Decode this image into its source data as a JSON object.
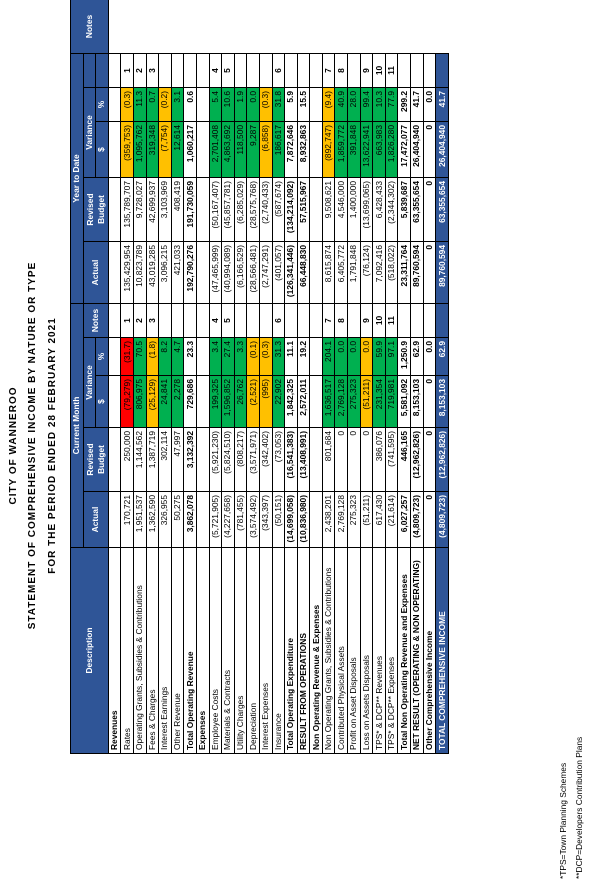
{
  "titles": {
    "org": "CITY OF WANNEROO",
    "statement": "STATEMENT OF COMPREHENSIVE INCOME BY NATURE OR TYPE",
    "period": "FOR THE PERIOD ENDED 28 FEBRUARY 2021"
  },
  "headers": {
    "description": "Description",
    "current_month": "Current Month",
    "year_to_date": "Year to Date",
    "actual": "Actual",
    "revised_budget": "Revised Budget",
    "variance": "Variance",
    "notes": "Notes",
    "dollar": "$",
    "percent": "%"
  },
  "colors": {
    "header_fill": "#2f5597",
    "favourable": "#00b050",
    "caution": "#ffc000",
    "unfavourable": "#ff0000"
  },
  "rows": [
    {
      "label": "Revenues",
      "kind": "sec",
      "cm": [
        "",
        "",
        "",
        "",
        ""
      ],
      "ytd": [
        "",
        "",
        "",
        "",
        ""
      ],
      "cmc": [
        "",
        "",
        "",
        "",
        ""
      ],
      "ytdc": [
        "",
        "",
        "",
        "",
        ""
      ]
    },
    {
      "label": "Rates",
      "kind": "item",
      "cm": [
        "170,721",
        "250,000",
        "(79,279)",
        "(31.7)",
        "1"
      ],
      "ytd": [
        "135,429,954",
        "135,789,707",
        "(359,753)",
        "(0.3)",
        "1"
      ],
      "cmc": [
        "",
        "",
        "red",
        "red",
        ""
      ],
      "ytdc": [
        "",
        "",
        "yellow",
        "yellow",
        ""
      ]
    },
    {
      "label": "Operating Grants, Subsidies & Contributions",
      "kind": "item",
      "cm": [
        "1,951,537",
        "1,144,562",
        "806,975",
        "70.5",
        "2"
      ],
      "ytd": [
        "10,823,789",
        "9,728,027",
        "1,095,762",
        "11.3",
        "2"
      ],
      "cmc": [
        "",
        "",
        "green",
        "green",
        ""
      ],
      "ytdc": [
        "",
        "",
        "green",
        "green",
        ""
      ]
    },
    {
      "label": "Fees & Charges",
      "kind": "item",
      "cm": [
        "1,362,590",
        "1,387,719",
        "(25,129)",
        "(1.8)",
        "3"
      ],
      "ytd": [
        "43,019,285",
        "42,699,937",
        "319,348",
        "0.7",
        "3"
      ],
      "cmc": [
        "",
        "",
        "yellow",
        "yellow",
        ""
      ],
      "ytdc": [
        "",
        "",
        "green",
        "green",
        ""
      ]
    },
    {
      "label": "Interest Earnings",
      "kind": "item",
      "cm": [
        "326,955",
        "302,114",
        "24,841",
        "8.2",
        ""
      ],
      "ytd": [
        "3,096,215",
        "3,103,969",
        "(7,754)",
        "(0.2)",
        ""
      ],
      "cmc": [
        "",
        "",
        "green",
        "green",
        ""
      ],
      "ytdc": [
        "",
        "",
        "yellow",
        "yellow",
        ""
      ]
    },
    {
      "label": "Other Revenue",
      "kind": "item",
      "cm": [
        "50,275",
        "47,997",
        "2,278",
        "4.7",
        ""
      ],
      "ytd": [
        "421,033",
        "408,419",
        "12,614",
        "3.1",
        ""
      ],
      "cmc": [
        "",
        "",
        "green",
        "green",
        ""
      ],
      "ytdc": [
        "",
        "",
        "green",
        "green",
        ""
      ]
    },
    {
      "label": "Total Operating Revenue",
      "kind": "tot",
      "cm": [
        "3,862,078",
        "3,132,392",
        "729,686",
        "23.3",
        ""
      ],
      "ytd": [
        "192,790,276",
        "191,730,059",
        "1,060,217",
        "0.6",
        ""
      ],
      "cmc": [
        "",
        "",
        "",
        "",
        ""
      ],
      "ytdc": [
        "",
        "",
        "",
        "",
        ""
      ]
    },
    {
      "label": "Expenses",
      "kind": "sec",
      "cm": [
        "",
        "",
        "",
        "",
        ""
      ],
      "ytd": [
        "",
        "",
        "",
        "",
        ""
      ],
      "cmc": [
        "",
        "",
        "",
        "",
        ""
      ],
      "ytdc": [
        "",
        "",
        "",
        "",
        ""
      ]
    },
    {
      "label": "Employee Costs",
      "kind": "item",
      "cm": [
        "(5,721,905)",
        "(5,921,230)",
        "199,325",
        "3.4",
        "4"
      ],
      "ytd": [
        "(47,465,999)",
        "(50,167,407)",
        "2,701,408",
        "5.4",
        "4"
      ],
      "cmc": [
        "",
        "",
        "green",
        "green",
        ""
      ],
      "ytdc": [
        "",
        "",
        "green",
        "green",
        ""
      ]
    },
    {
      "label": "Materials & Contracts",
      "kind": "item",
      "cm": [
        "(4,227,658)",
        "(5,824,510)",
        "1,596,852",
        "27.4",
        "5"
      ],
      "ytd": [
        "(40,994,089)",
        "(45,857,781)",
        "4,863,692",
        "10.6",
        "5"
      ],
      "cmc": [
        "",
        "",
        "green",
        "green",
        ""
      ],
      "ytdc": [
        "",
        "",
        "green",
        "green",
        ""
      ]
    },
    {
      "label": "Utility Charges",
      "kind": "item",
      "cm": [
        "(781,455)",
        "(808,217)",
        "26,762",
        "3.3",
        ""
      ],
      "ytd": [
        "(6,166,529)",
        "(6,285,029)",
        "118,500",
        "1.9",
        ""
      ],
      "cmc": [
        "",
        "",
        "green",
        "green",
        ""
      ],
      "ytdc": [
        "",
        "",
        "green",
        "green",
        ""
      ]
    },
    {
      "label": "Depreciation",
      "kind": "item",
      "cm": [
        "(3,574,492)",
        "(3,571,971)",
        "(2,521)",
        "(0.1)",
        ""
      ],
      "ytd": [
        "(28,566,481)",
        "(28,575,768)",
        "9,287",
        "0.0",
        ""
      ],
      "cmc": [
        "",
        "",
        "yellow",
        "yellow",
        ""
      ],
      "ytdc": [
        "",
        "",
        "green",
        "green",
        ""
      ]
    },
    {
      "label": "Interest Expenses",
      "kind": "item",
      "cm": [
        "(343,397)",
        "(342,402)",
        "(995)",
        "(0.3)",
        ""
      ],
      "ytd": [
        "(2,747,291)",
        "(2,740,433)",
        "(6,858)",
        "(0.3)",
        ""
      ],
      "cmc": [
        "",
        "",
        "yellow",
        "yellow",
        ""
      ],
      "ytdc": [
        "",
        "",
        "yellow",
        "yellow",
        ""
      ]
    },
    {
      "label": "Insurance",
      "kind": "item",
      "cm": [
        "(50,151)",
        "(73,053)",
        "22,902",
        "31.3",
        "6"
      ],
      "ytd": [
        "(401,057)",
        "(587,674)",
        "186,617",
        "31.8",
        "6"
      ],
      "cmc": [
        "",
        "",
        "green",
        "green",
        ""
      ],
      "ytdc": [
        "",
        "",
        "green",
        "green",
        ""
      ]
    },
    {
      "label": "Total Operating Expenditure",
      "kind": "tot",
      "cm": [
        "(14,699,058)",
        "(16,541,383)",
        "1,842,325",
        "11.1",
        ""
      ],
      "ytd": [
        "(126,341,446)",
        "(134,214,092)",
        "7,872,646",
        "5.9",
        ""
      ],
      "cmc": [
        "",
        "",
        "",
        "",
        ""
      ],
      "ytdc": [
        "",
        "",
        "",
        "",
        ""
      ]
    },
    {
      "label": "RESULT FROM OPERATIONS",
      "kind": "tot",
      "cm": [
        "(10,836,980)",
        "(13,408,991)",
        "2,572,011",
        "19.2",
        ""
      ],
      "ytd": [
        "66,448,830",
        "57,515,967",
        "8,932,863",
        "15.5",
        ""
      ],
      "cmc": [
        "",
        "",
        "",
        "",
        ""
      ],
      "ytdc": [
        "",
        "",
        "",
        "",
        ""
      ]
    },
    {
      "label": "Non Operating Revenue & Expenses",
      "kind": "sec",
      "cm": [
        "",
        "",
        "",
        "",
        ""
      ],
      "ytd": [
        "",
        "",
        "",
        "",
        ""
      ],
      "cmc": [
        "",
        "",
        "",
        "",
        ""
      ],
      "ytdc": [
        "",
        "",
        "",
        "",
        ""
      ]
    },
    {
      "label": "Non Operating Grants, Subsidies & Contributions",
      "kind": "item",
      "cm": [
        "2,438,201",
        "801,684",
        "1,636,517",
        "204.1",
        "7"
      ],
      "ytd": [
        "8,615,874",
        "9,508,621",
        "(892,747)",
        "(9.4)",
        "7"
      ],
      "cmc": [
        "",
        "",
        "green",
        "green",
        ""
      ],
      "ytdc": [
        "",
        "",
        "yellow",
        "yellow",
        ""
      ]
    },
    {
      "label": "Contributed Physical Assets",
      "kind": "item",
      "cm": [
        "2,769,128",
        "0",
        "2,769,128",
        "0.0",
        "8"
      ],
      "ytd": [
        "6,405,772",
        "4,546,000",
        "1,859,772",
        "40.9",
        "8"
      ],
      "cmc": [
        "",
        "",
        "green",
        "green",
        ""
      ],
      "ytdc": [
        "",
        "",
        "green",
        "green",
        ""
      ]
    },
    {
      "label": "Profit on Asset Disposals",
      "kind": "item",
      "cm": [
        "275,323",
        "0",
        "275,323",
        "0.0",
        ""
      ],
      "ytd": [
        "1,791,848",
        "1,400,000",
        "391,848",
        "28.0",
        ""
      ],
      "cmc": [
        "",
        "",
        "green",
        "green",
        ""
      ],
      "ytdc": [
        "",
        "",
        "green",
        "green",
        ""
      ]
    },
    {
      "label": "Loss on Assets Disposals",
      "kind": "item",
      "cm": [
        "(51,211)",
        "0",
        "(51,211)",
        "0.0",
        "9"
      ],
      "ytd": [
        "(76,124)",
        "(13,699,065)",
        "13,622,941",
        "99.4",
        "9"
      ],
      "cmc": [
        "",
        "",
        "yellow",
        "yellow",
        ""
      ],
      "ytdc": [
        "",
        "",
        "green",
        "green",
        ""
      ]
    },
    {
      "label": "TPS* & DCP** Revenues",
      "kind": "item",
      "cm": [
        "617,430",
        "386,076",
        "231,354",
        "59.9",
        "10"
      ],
      "ytd": [
        "7,092,416",
        "6,428,433",
        "663,983",
        "10.3",
        "10"
      ],
      "cmc": [
        "",
        "",
        "green",
        "green",
        ""
      ],
      "ytdc": [
        "",
        "",
        "green",
        "green",
        ""
      ]
    },
    {
      "label": "TPS* & DCP** Expenses",
      "kind": "item",
      "cm": [
        "(21,614)",
        "(741,595)",
        "719,981",
        "97.1",
        "11"
      ],
      "ytd": [
        "(518,022)",
        "(2,344,302)",
        "1,826,280",
        "77.9",
        "11"
      ],
      "cmc": [
        "",
        "",
        "green",
        "green",
        ""
      ],
      "ytdc": [
        "",
        "",
        "green",
        "green",
        ""
      ]
    },
    {
      "label": "Total Non Operating Revenue and Expenses",
      "kind": "tot",
      "cm": [
        "6,027,257",
        "446,165",
        "5,581,092",
        "1,250.9",
        ""
      ],
      "ytd": [
        "23,311,764",
        "5,839,687",
        "17,472,077",
        "299.2",
        ""
      ],
      "cmc": [
        "",
        "",
        "",
        "",
        ""
      ],
      "ytdc": [
        "",
        "",
        "",
        "",
        ""
      ]
    },
    {
      "label": "NET RESULT (OPERATING & NON OPERATING)",
      "kind": "tot",
      "cm": [
        "(4,809,723)",
        "(12,962,826)",
        "8,153,103",
        "62.9",
        ""
      ],
      "ytd": [
        "89,760,594",
        "63,355,654",
        "26,404,940",
        "41.7",
        ""
      ],
      "cmc": [
        "",
        "",
        "",
        "",
        ""
      ],
      "ytdc": [
        "",
        "",
        "",
        "",
        ""
      ]
    },
    {
      "label": "Other Comprehensive Income",
      "kind": "tot",
      "cm": [
        "0",
        "0",
        "0",
        "0.0",
        ""
      ],
      "ytd": [
        "0",
        "0",
        "0",
        "0.0",
        ""
      ],
      "cmc": [
        "",
        "",
        "",
        "",
        ""
      ],
      "ytdc": [
        "",
        "",
        "",
        "",
        ""
      ]
    },
    {
      "label": "TOTAL COMPREHENSIVE INCOME",
      "kind": "final",
      "cm": [
        "(4,809,723)",
        "(12,962,826)",
        "8,153,103",
        "62.9",
        ""
      ],
      "ytd": [
        "89,760,594",
        "63,355,654",
        "26,404,940",
        "41.7",
        ""
      ],
      "cmc": [
        "",
        "",
        "",
        "",
        ""
      ],
      "ytdc": [
        "",
        "",
        "",
        "",
        ""
      ]
    }
  ],
  "footnotes": [
    "*TPS=Town Planning Schemes",
    "**DCP=Developers Contribution Plans"
  ]
}
